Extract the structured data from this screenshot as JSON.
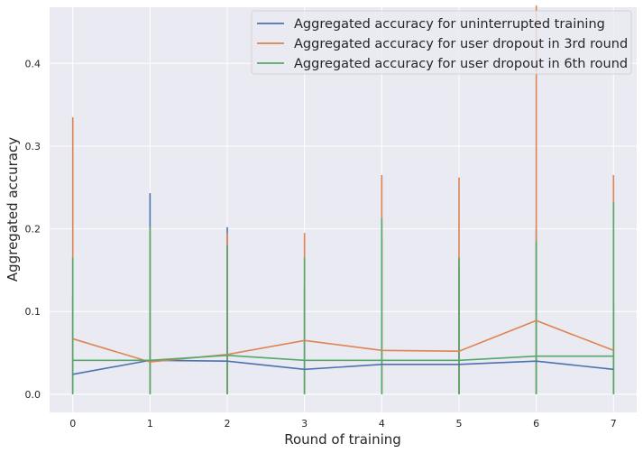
{
  "chart_data": {
    "type": "line",
    "title": "",
    "xlabel": "Round of training",
    "ylabel": "Aggregated accuracy",
    "x": [
      0,
      1,
      2,
      3,
      4,
      5,
      6,
      7
    ],
    "xlim": [
      -0.3,
      7.3
    ],
    "ylim": [
      -0.022,
      0.468
    ],
    "xticks": [
      "0",
      "1",
      "2",
      "3",
      "4",
      "5",
      "6",
      "7"
    ],
    "yticks": [
      "0.0",
      "0.1",
      "0.2",
      "0.3",
      "0.4"
    ],
    "grid": true,
    "legend_position": "top-right",
    "series": [
      {
        "name": "Aggregated accuracy for uninterrupted training",
        "color": "#4c72b0",
        "values": [
          0.024,
          0.041,
          0.04,
          0.03,
          0.036,
          0.036,
          0.04,
          0.03
        ],
        "error_bars": [
          [
            0,
            0.12
          ],
          [
            0,
            0.243
          ],
          [
            0,
            0.202
          ],
          [
            0,
            0.13
          ],
          [
            0,
            0.19
          ],
          [
            0,
            0.155
          ],
          [
            0,
            0.2
          ],
          [
            0,
            0.11
          ]
        ]
      },
      {
        "name": "Aggregated accuracy for user dropout in 3rd round",
        "color": "#dd8452",
        "values": [
          0.067,
          0.039,
          0.048,
          0.065,
          0.053,
          0.052,
          0.089,
          0.053
        ],
        "error_bars": [
          [
            0,
            0.335
          ],
          [
            0,
            0.195
          ],
          [
            0,
            0.195
          ],
          [
            0,
            0.195
          ],
          [
            0,
            0.265
          ],
          [
            0,
            0.262
          ],
          [
            0,
            0.47
          ],
          [
            0,
            0.265
          ]
        ]
      },
      {
        "name": "Aggregated accuracy for user dropout in 6th round",
        "color": "#55a868",
        "values": [
          0.041,
          0.041,
          0.047,
          0.041,
          0.041,
          0.041,
          0.046,
          0.046
        ],
        "error_bars": [
          [
            0,
            0.165
          ],
          [
            0,
            0.203
          ],
          [
            0,
            0.18
          ],
          [
            0,
            0.165
          ],
          [
            0,
            0.213
          ],
          [
            0,
            0.165
          ],
          [
            0,
            0.185
          ],
          [
            0,
            0.232
          ]
        ]
      }
    ]
  }
}
